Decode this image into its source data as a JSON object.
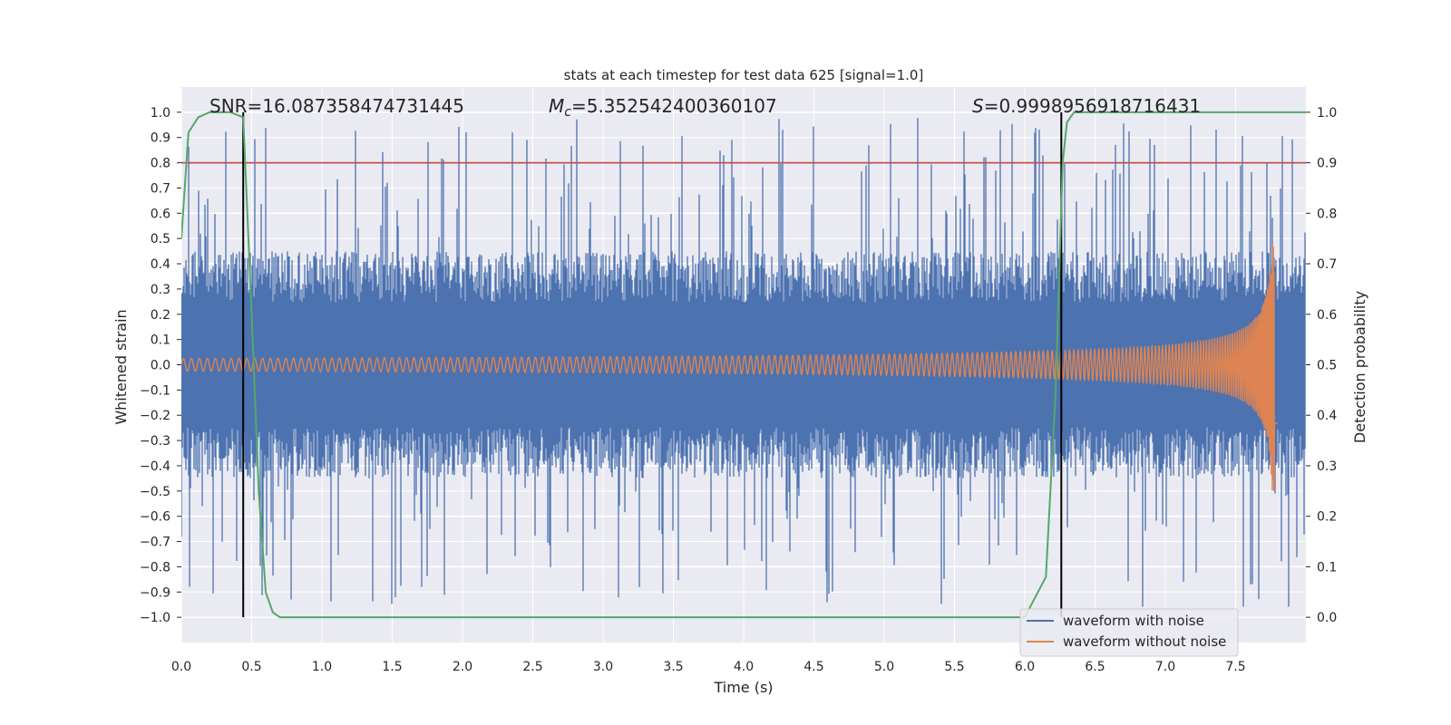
{
  "chart_data": {
    "type": "line",
    "title": "stats at each timestep for test data 625 [signal=1.0]",
    "xlabel": "Time (s)",
    "ylabel_left": "Whitened strain",
    "ylabel_right": "Detection probability",
    "xlim": [
      0.0,
      8.0
    ],
    "ylim_left": [
      -1.1,
      1.1
    ],
    "ylim_right": [
      -0.05,
      1.05
    ],
    "x_ticks": [
      0.0,
      0.5,
      1.0,
      1.5,
      2.0,
      2.5,
      3.0,
      3.5,
      4.0,
      4.5,
      5.0,
      5.5,
      6.0,
      6.5,
      7.0,
      7.5
    ],
    "x_tick_labels": [
      "0.0",
      "0.5",
      "1.0",
      "1.5",
      "2.0",
      "2.5",
      "3.0",
      "3.5",
      "4.0",
      "4.5",
      "5.0",
      "5.5",
      "6.0",
      "6.5",
      "7.0",
      "7.5"
    ],
    "y_ticks_left": [
      1.0,
      0.9,
      0.8,
      0.7,
      0.6,
      0.5,
      0.4,
      0.3,
      0.2,
      0.1,
      0.0,
      -0.1,
      -0.2,
      -0.3,
      -0.4,
      -0.5,
      -0.6,
      -0.7,
      -0.8,
      -0.9,
      -1.0
    ],
    "y_tick_labels_left": [
      "1.0",
      "0.9",
      "0.8",
      "0.7",
      "0.6",
      "0.5",
      "0.4",
      "0.3",
      "0.2",
      "0.1",
      "0.0",
      "−0.1",
      "−0.2",
      "−0.3",
      "−0.4",
      "−0.5",
      "−0.6",
      "−0.7",
      "−0.8",
      "−0.9",
      "−1.0"
    ],
    "y_ticks_right": [
      1.0,
      0.9,
      0.8,
      0.7,
      0.6,
      0.5,
      0.4,
      0.3,
      0.2,
      0.1,
      0.0
    ],
    "y_tick_labels_right": [
      "1.0",
      "0.9",
      "0.8",
      "0.7",
      "0.6",
      "0.5",
      "0.4",
      "0.3",
      "0.2",
      "0.1",
      "0.0"
    ],
    "annotations": {
      "snr": "SNR=16.087358474731445",
      "mc_symbol": "M",
      "mc_subscript": "c",
      "mc_value": "=5.352542400360107",
      "s_symbol": "S",
      "s_value": "=0.9998956918716431"
    },
    "threshold_line": {
      "axis": "right",
      "value": 0.9,
      "color": "#c44e52"
    },
    "vertical_lines": [
      0.44,
      6.26
    ],
    "noisy_waveform": {
      "name": "waveform with noise",
      "color": "#4c72b0",
      "x_range": [
        0.0,
        8.0
      ],
      "typical_envelope": [
        -0.45,
        0.45
      ],
      "max": 1.0,
      "min": -0.96
    },
    "clean_waveform": {
      "name": "waveform without noise",
      "color": "#dd8452",
      "x_range": [
        0.0,
        7.8
      ],
      "start_amplitude": 0.025,
      "end_amplitude": 0.5,
      "merger_time": 7.78
    },
    "detection_probability": {
      "name": "detection probability",
      "color": "#55a868",
      "x": [
        0.0,
        0.05,
        0.12,
        0.2,
        0.35,
        0.44,
        0.5,
        0.55,
        0.6,
        0.65,
        0.7,
        4.0,
        6.0,
        6.15,
        6.22,
        6.27,
        6.3,
        6.35,
        6.45,
        8.0
      ],
      "y": [
        0.75,
        0.96,
        0.99,
        1.0,
        1.0,
        0.99,
        0.6,
        0.25,
        0.05,
        0.01,
        0.0,
        0.0,
        0.0,
        0.08,
        0.45,
        0.9,
        0.98,
        1.0,
        1.0,
        1.0
      ]
    },
    "legend": {
      "position": "bottom-right",
      "entries": [
        {
          "label": "waveform with noise",
          "color": "#4c72b0"
        },
        {
          "label": "waveform without noise",
          "color": "#dd8452"
        }
      ]
    },
    "grid": true
  }
}
